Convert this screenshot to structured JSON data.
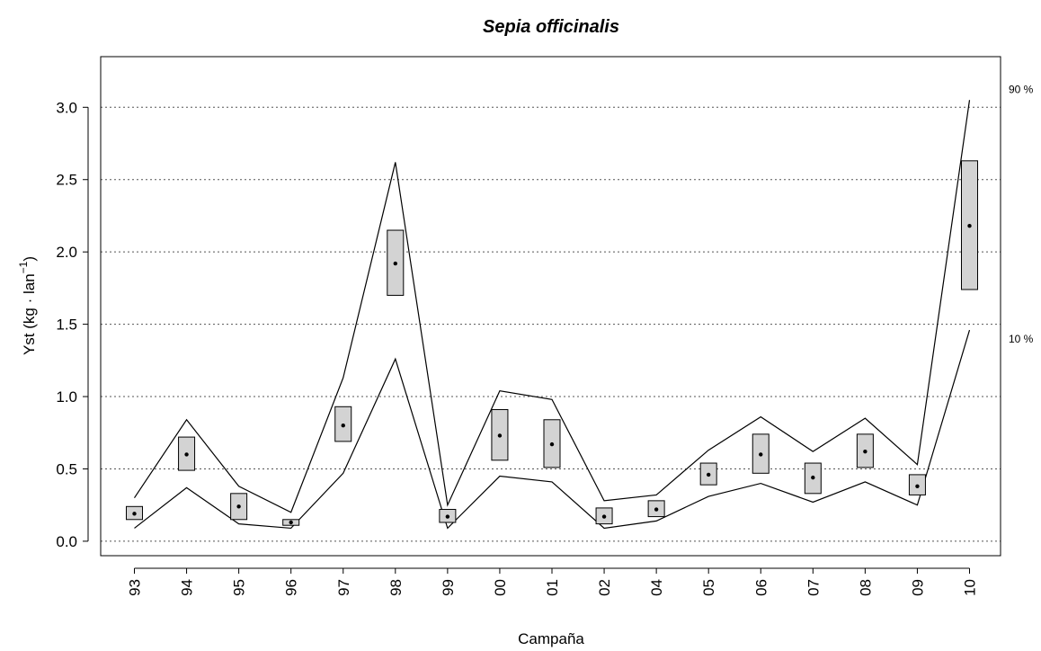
{
  "chart_data": {
    "type": "box",
    "title": "Sepia officinalis",
    "xlabel": "Campaña",
    "ylabel": {
      "main": "Yst (kg · lan",
      "sup": "−1",
      "tail": ")"
    },
    "categories": [
      "93",
      "94",
      "95",
      "96",
      "97",
      "98",
      "99",
      "00",
      "01",
      "02",
      "04",
      "05",
      "06",
      "07",
      "08",
      "09",
      "10"
    ],
    "ylim": [
      -0.1,
      3.35
    ],
    "yticks": [
      0.0,
      0.5,
      1.0,
      1.5,
      2.0,
      2.5,
      3.0
    ],
    "ytick_labels": [
      "0.0",
      "0.5",
      "1.0",
      "1.5",
      "2.0",
      "2.5",
      "3.0"
    ],
    "grid": true,
    "mean": [
      0.19,
      0.6,
      0.24,
      0.13,
      0.8,
      1.92,
      0.17,
      0.73,
      0.67,
      0.17,
      0.22,
      0.46,
      0.6,
      0.44,
      0.62,
      0.38,
      2.18
    ],
    "box_low": [
      0.15,
      0.49,
      0.15,
      0.11,
      0.69,
      1.7,
      0.13,
      0.56,
      0.51,
      0.12,
      0.17,
      0.39,
      0.47,
      0.33,
      0.51,
      0.32,
      1.74
    ],
    "box_high": [
      0.24,
      0.72,
      0.33,
      0.15,
      0.93,
      2.15,
      0.22,
      0.91,
      0.84,
      0.23,
      0.28,
      0.54,
      0.74,
      0.54,
      0.74,
      0.46,
      2.63
    ],
    "series": [
      {
        "name": "90 %",
        "values": [
          0.3,
          0.84,
          0.38,
          0.2,
          1.13,
          2.62,
          0.25,
          1.04,
          0.98,
          0.28,
          0.32,
          0.63,
          0.86,
          0.62,
          0.85,
          0.53,
          3.05
        ]
      },
      {
        "name": "10 %",
        "values": [
          0.09,
          0.37,
          0.12,
          0.09,
          0.47,
          1.26,
          0.09,
          0.45,
          0.41,
          0.09,
          0.14,
          0.31,
          0.4,
          0.27,
          0.41,
          0.25,
          1.46
        ]
      }
    ],
    "colors": {
      "box_fill": "#d3d3d3",
      "line": "#000000",
      "grid": "#555555"
    }
  }
}
